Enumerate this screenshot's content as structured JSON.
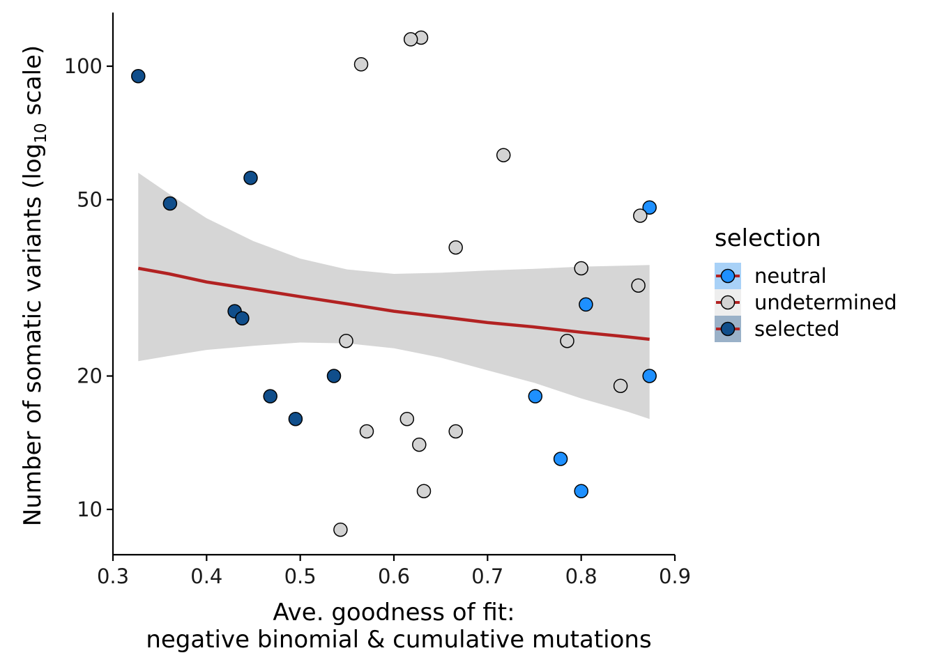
{
  "chart_data": {
    "type": "scatter",
    "title": "",
    "xlabel": [
      "Ave. goodness of fit:",
      "negative binomial & cumulative mutations"
    ],
    "ylabel": {
      "main": "Number of somatic variants (log",
      "sub": "10",
      "tail": " scale)"
    },
    "x_ticks": [
      "0.3",
      "0.4",
      "0.5",
      "0.6",
      "0.7",
      "0.8",
      "0.9"
    ],
    "y_ticks": [
      "10",
      "20",
      "50",
      "100"
    ],
    "xlim": [
      0.3,
      0.9
    ],
    "ylim": [
      8.8,
      130
    ],
    "y_scale": "log10",
    "grid": false,
    "legend": {
      "title": "selection",
      "placement": "right",
      "entries": [
        {
          "name": "neutral",
          "color": "#1E90FF",
          "band": "#A8D1F7"
        },
        {
          "name": "undetermined",
          "color": "#D3D3D3",
          "band": "#EEEEEE"
        },
        {
          "name": "selected",
          "color": "#104E8B",
          "band": "#9AB1C8"
        }
      ]
    },
    "series": [
      {
        "name": "neutral",
        "points": [
          {
            "x": 0.873,
            "y": 48
          },
          {
            "x": 0.805,
            "y": 29
          },
          {
            "x": 0.873,
            "y": 20
          },
          {
            "x": 0.751,
            "y": 18
          },
          {
            "x": 0.778,
            "y": 13
          },
          {
            "x": 0.8,
            "y": 11
          }
        ]
      },
      {
        "name": "undetermined",
        "points": [
          {
            "x": 0.629,
            "y": 116
          },
          {
            "x": 0.618,
            "y": 115
          },
          {
            "x": 0.565,
            "y": 101
          },
          {
            "x": 0.717,
            "y": 63
          },
          {
            "x": 0.863,
            "y": 46
          },
          {
            "x": 0.666,
            "y": 39
          },
          {
            "x": 0.8,
            "y": 35
          },
          {
            "x": 0.861,
            "y": 32
          },
          {
            "x": 0.549,
            "y": 24
          },
          {
            "x": 0.785,
            "y": 24
          },
          {
            "x": 0.842,
            "y": 19
          },
          {
            "x": 0.614,
            "y": 16
          },
          {
            "x": 0.571,
            "y": 15
          },
          {
            "x": 0.666,
            "y": 15
          },
          {
            "x": 0.627,
            "y": 14
          },
          {
            "x": 0.632,
            "y": 11
          },
          {
            "x": 0.543,
            "y": 9
          }
        ]
      },
      {
        "name": "selected",
        "points": [
          {
            "x": 0.327,
            "y": 95
          },
          {
            "x": 0.447,
            "y": 56
          },
          {
            "x": 0.361,
            "y": 49
          },
          {
            "x": 0.43,
            "y": 28
          },
          {
            "x": 0.438,
            "y": 27
          },
          {
            "x": 0.536,
            "y": 20
          },
          {
            "x": 0.468,
            "y": 18
          },
          {
            "x": 0.495,
            "y": 16
          }
        ]
      }
    ],
    "trend": {
      "color": "#B22222",
      "band_color": "#D6D6D6",
      "x": [
        0.327,
        0.36,
        0.4,
        0.45,
        0.5,
        0.55,
        0.6,
        0.65,
        0.7,
        0.75,
        0.8,
        0.85,
        0.873
      ],
      "fit": [
        35.0,
        34.0,
        32.6,
        31.4,
        30.2,
        29.1,
        28.0,
        27.2,
        26.4,
        25.8,
        25.1,
        24.5,
        24.2
      ],
      "upper": [
        57.5,
        51.5,
        45.4,
        40.3,
        36.8,
        34.8,
        34.0,
        34.2,
        34.6,
        34.9,
        35.3,
        35.5,
        35.6
      ],
      "lower": [
        21.6,
        22.2,
        22.9,
        23.4,
        23.8,
        23.7,
        23.1,
        22.0,
        20.6,
        19.3,
        17.8,
        16.6,
        16.0
      ]
    }
  }
}
